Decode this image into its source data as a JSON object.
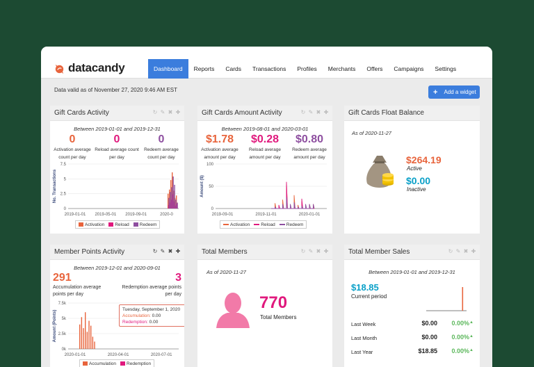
{
  "app": {
    "logo_text": "datacandy"
  },
  "nav": [
    {
      "label": "Dashboard",
      "active": true
    },
    {
      "label": "Reports"
    },
    {
      "label": "Cards"
    },
    {
      "label": "Transactions"
    },
    {
      "label": "Profiles"
    },
    {
      "label": "Merchants"
    },
    {
      "label": "Offers"
    },
    {
      "label": "Campaigns"
    },
    {
      "label": "Settings"
    }
  ],
  "header": {
    "data_valid": "Data valid as of November 27, 2020 9:46 AM EST",
    "add_widget_label": "Add a widget"
  },
  "colors": {
    "accent": "#3b7ddd",
    "activation": "#e8643c",
    "reload": "#e0197d",
    "redeem": "#8e4fa0",
    "member": "#e0197d",
    "current": "#0aa0c8",
    "positive": "#5cb85c"
  },
  "widgets": {
    "gift_cards_activity": {
      "title": "Gift Cards Activity",
      "period": "Between 2019-01-01 and 2019-12-31",
      "stats": [
        {
          "value": "0",
          "label1": "Activation average",
          "label2": "count per day"
        },
        {
          "value": "0",
          "label1": "Reload average count",
          "label2": "per day"
        },
        {
          "value": "0",
          "label1": "Redeem average",
          "label2": "count per day"
        }
      ],
      "legend": [
        "Activation",
        "Reload",
        "Redeem"
      ]
    },
    "gift_cards_amount_activity": {
      "title": "Gift Cards Amount Activity",
      "period": "Between 2019-08-01 and 2020-03-01",
      "stats": [
        {
          "value": "$1.78",
          "label1": "Activation average",
          "label2": "amount per day"
        },
        {
          "value": "$0.28",
          "label1": "Reload average",
          "label2": "amount per day"
        },
        {
          "value": "$0.80",
          "label1": "Redeem average",
          "label2": "amount per day"
        }
      ],
      "legend": [
        "Activation",
        "Reload",
        "Redeem"
      ]
    },
    "gift_cards_float_balance": {
      "title": "Gift Cards Float Balance",
      "as_of": "As of 2020-11-27",
      "active_value": "$264.19",
      "active_label": "Active",
      "inactive_value": "$0.00",
      "inactive_label": "Inactive"
    },
    "member_points_activity": {
      "title": "Member Points Activity",
      "period": "Between 2019-12-01 and 2020-09-01",
      "accumulation_value": "291",
      "accumulation_label1": "Accumulation average",
      "accumulation_label2": "points per day",
      "redemption_value": "3",
      "redemption_label1": "Redemption average points",
      "redemption_label2": "per day",
      "tooltip": {
        "date": "Tuesday, September 1, 2020",
        "acc_label": "Accumulation:",
        "acc_value": "0.00",
        "red_label": "Redemption:",
        "red_value": "0.00"
      },
      "legend": [
        "Accumulation",
        "Redemption"
      ]
    },
    "total_members": {
      "title": "Total Members",
      "as_of": "As of 2020-11-27",
      "value": "770",
      "label": "Total Members"
    },
    "total_member_sales": {
      "title": "Total Member Sales",
      "period": "Between 2019-01-01 and 2019-12-31",
      "current_value": "$18.85",
      "current_label": "Current period",
      "rows": [
        {
          "label": "Last Week",
          "value": "$0.00",
          "pct": "0.00%"
        },
        {
          "label": "Last Month",
          "value": "$0.00",
          "pct": "0.00%"
        },
        {
          "label": "Last Year",
          "value": "$18.85",
          "pct": "0.00%"
        }
      ]
    }
  },
  "chart_data": [
    {
      "type": "bar",
      "name": "gift-cards-activity",
      "ylabel": "No. Transactions",
      "yticks": [
        "7.5",
        "5",
        "2.5",
        "0"
      ],
      "xticks": [
        "2019-01-01",
        "2019-05-01",
        "2019-09-01",
        "2020-0"
      ],
      "ylim": [
        0,
        7.5
      ],
      "series": [
        {
          "name": "Activation",
          "color": "#e8643c",
          "values": [
            2.5,
            3.2,
            4.8,
            6.1,
            3.0,
            1.8,
            2.2
          ]
        },
        {
          "name": "Reload",
          "color": "#e0197d",
          "values": [
            0.6,
            1.0,
            1.5,
            2.4,
            1.2,
            0.5,
            0.8
          ]
        },
        {
          "name": "Redeem",
          "color": "#8e4fa0",
          "values": [
            1.8,
            2.8,
            3.6,
            5.4,
            4.0,
            1.5,
            1.0
          ]
        }
      ]
    },
    {
      "type": "line",
      "name": "gift-cards-amount-activity",
      "ylabel": "Amount ($)",
      "yticks": [
        "100",
        "50",
        "0"
      ],
      "xticks": [
        "2019-09-01",
        "2019-11-01",
        "2020-01-01"
      ],
      "ylim": [
        0,
        100
      ],
      "series": [
        {
          "name": "Activation",
          "color": "#e8643c",
          "values": [
            0,
            12,
            0,
            20,
            55,
            0,
            30,
            8,
            15,
            0,
            10,
            10
          ]
        },
        {
          "name": "Reload",
          "color": "#e0197d",
          "values": [
            0,
            0,
            8,
            0,
            60,
            0,
            5,
            0,
            22,
            0,
            0,
            0
          ]
        },
        {
          "name": "Redeem",
          "color": "#8e4fa0",
          "values": [
            0,
            4,
            0,
            10,
            25,
            10,
            14,
            4,
            6,
            10,
            10,
            10
          ]
        }
      ]
    },
    {
      "type": "bar",
      "name": "member-points-activity",
      "ylabel": "Amount (Points)",
      "yticks": [
        "7.5k",
        "5k",
        "2.5k",
        "0k"
      ],
      "xticks": [
        "2020-01-01",
        "2020-04-01",
        "2020-07-01"
      ],
      "ylim": [
        0,
        7500
      ],
      "series": [
        {
          "name": "Accumulation",
          "color": "#e8643c",
          "values": [
            4000,
            5200,
            3400,
            6000,
            2800,
            4600,
            3800,
            2000,
            1200
          ]
        },
        {
          "name": "Redemption",
          "color": "#e0197d",
          "values": [
            0,
            0,
            0,
            0,
            0,
            0,
            0,
            0,
            0
          ]
        }
      ]
    },
    {
      "type": "bar",
      "name": "total-member-sales",
      "series": [
        {
          "name": "Current period",
          "color": "#e8643c",
          "values": [
            0,
            0,
            0,
            0,
            0,
            0,
            0,
            0,
            0,
            0,
            0,
            18.85
          ]
        }
      ]
    }
  ]
}
